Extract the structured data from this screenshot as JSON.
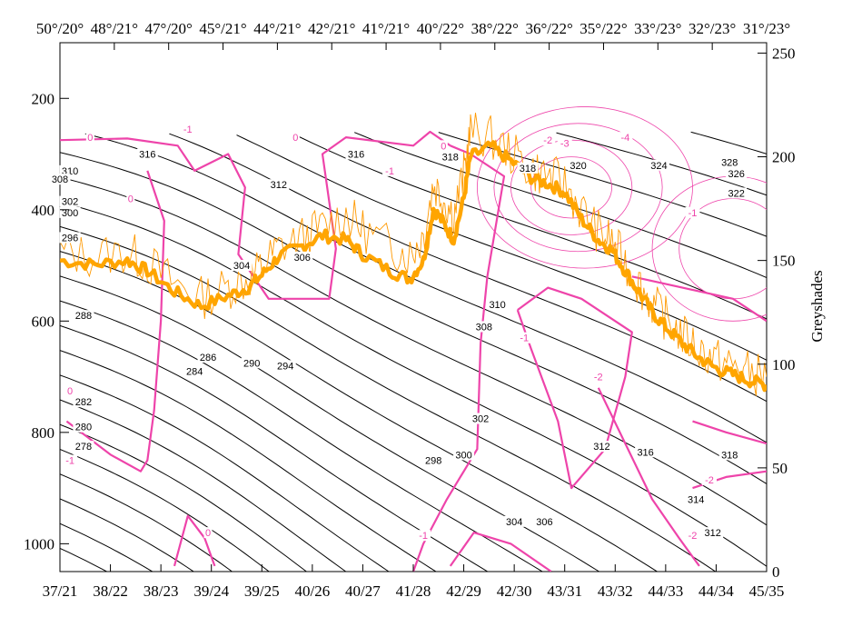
{
  "chart_data": {
    "type": "line",
    "title": "",
    "x_bottom_ticks": [
      "37/21",
      "38/22",
      "38/23",
      "39/24",
      "39/25",
      "40/26",
      "40/27",
      "41/28",
      "42/29",
      "42/30",
      "43/31",
      "43/32",
      "44/33",
      "44/34",
      "45/35"
    ],
    "x_top_ticks": [
      "50°/20°",
      "48°/21°",
      "47°/20°",
      "45°/21°",
      "44°/21°",
      "42°/21°",
      "41°/21°",
      "40°/22°",
      "38°/22°",
      "36°/22°",
      "35°/22°",
      "33°/23°",
      "32°/23°",
      "31°/23°"
    ],
    "y_left": {
      "label": "",
      "ticks": [
        200,
        400,
        600,
        800,
        1000
      ],
      "range": [
        1050,
        100
      ],
      "inverted": true
    },
    "y_right": {
      "label": "Greyshades",
      "ticks": [
        0,
        50,
        100,
        150,
        200,
        250
      ],
      "range": [
        0,
        255
      ]
    },
    "isentropes": {
      "color": "#000000",
      "labels": [
        {
          "text": "316",
          "x": 2.6,
          "p": 300
        },
        {
          "text": "316",
          "x": 8.8,
          "p": 300
        },
        {
          "text": "310",
          "x": 0.3,
          "p": 330
        },
        {
          "text": "308",
          "x": 0.0,
          "p": 345
        },
        {
          "text": "312",
          "x": 6.5,
          "p": 355
        },
        {
          "text": "318",
          "x": 11.6,
          "p": 305
        },
        {
          "text": "318",
          "x": 13.9,
          "p": 325
        },
        {
          "text": "320",
          "x": 15.4,
          "p": 320
        },
        {
          "text": "324",
          "x": 17.8,
          "p": 320
        },
        {
          "text": "328",
          "x": 19.9,
          "p": 315
        },
        {
          "text": "326",
          "x": 20.1,
          "p": 335
        },
        {
          "text": "322",
          "x": 20.1,
          "p": 370
        },
        {
          "text": "302",
          "x": 0.3,
          "p": 385
        },
        {
          "text": "300",
          "x": 0.3,
          "p": 405
        },
        {
          "text": "296",
          "x": 0.3,
          "p": 450
        },
        {
          "text": "304",
          "x": 5.4,
          "p": 500
        },
        {
          "text": "306",
          "x": 7.2,
          "p": 485
        },
        {
          "text": "288",
          "x": 0.7,
          "p": 590
        },
        {
          "text": "286",
          "x": 4.4,
          "p": 665
        },
        {
          "text": "284",
          "x": 4.0,
          "p": 690
        },
        {
          "text": "290",
          "x": 5.7,
          "p": 675
        },
        {
          "text": "294",
          "x": 6.7,
          "p": 680
        },
        {
          "text": "282",
          "x": 0.7,
          "p": 745
        },
        {
          "text": "280",
          "x": 0.7,
          "p": 790
        },
        {
          "text": "278",
          "x": 0.7,
          "p": 825
        },
        {
          "text": "310",
          "x": 13.0,
          "p": 570
        },
        {
          "text": "308",
          "x": 12.6,
          "p": 610
        },
        {
          "text": "302",
          "x": 12.5,
          "p": 775
        },
        {
          "text": "300",
          "x": 12.0,
          "p": 840
        },
        {
          "text": "298",
          "x": 11.1,
          "p": 850
        },
        {
          "text": "304",
          "x": 13.5,
          "p": 960
        },
        {
          "text": "306",
          "x": 14.4,
          "p": 960
        },
        {
          "text": "312",
          "x": 16.1,
          "p": 825
        },
        {
          "text": "316",
          "x": 17.4,
          "p": 835
        },
        {
          "text": "318",
          "x": 19.9,
          "p": 840
        },
        {
          "text": "314",
          "x": 18.9,
          "p": 920
        },
        {
          "text": "312",
          "x": 19.4,
          "p": 980
        }
      ]
    },
    "pv_contours": {
      "color": "#ee44aa",
      "labels": [
        {
          "text": "0",
          "x": 0.9,
          "p": 270
        },
        {
          "text": "-1",
          "x": 3.8,
          "p": 255
        },
        {
          "text": "0",
          "x": 7.0,
          "p": 270
        },
        {
          "text": "0",
          "x": 2.1,
          "p": 380
        },
        {
          "text": "-1",
          "x": 9.8,
          "p": 330
        },
        {
          "text": "0",
          "x": 11.4,
          "p": 285
        },
        {
          "text": "-2",
          "x": 14.5,
          "p": 275
        },
        {
          "text": "-3",
          "x": 15.0,
          "p": 280
        },
        {
          "text": "-4",
          "x": 16.8,
          "p": 270
        },
        {
          "text": "-1",
          "x": 18.8,
          "p": 405
        },
        {
          "text": "-1",
          "x": 13.8,
          "p": 630
        },
        {
          "text": "-2",
          "x": 16.0,
          "p": 700
        },
        {
          "text": "0",
          "x": 0.3,
          "p": 725
        },
        {
          "text": "-1",
          "x": 0.3,
          "p": 850
        },
        {
          "text": "0",
          "x": 4.4,
          "p": 980
        },
        {
          "text": "-1",
          "x": 10.8,
          "p": 985
        },
        {
          "text": "-2",
          "x": 19.3,
          "p": 885
        },
        {
          "text": "-2",
          "x": 18.8,
          "p": 985
        }
      ]
    },
    "series": [
      {
        "color": "#ffa500",
        "style": "thick"
      },
      {
        "color": "#ff9900",
        "style": "thin"
      }
    ],
    "grid": false,
    "legend": "none"
  }
}
